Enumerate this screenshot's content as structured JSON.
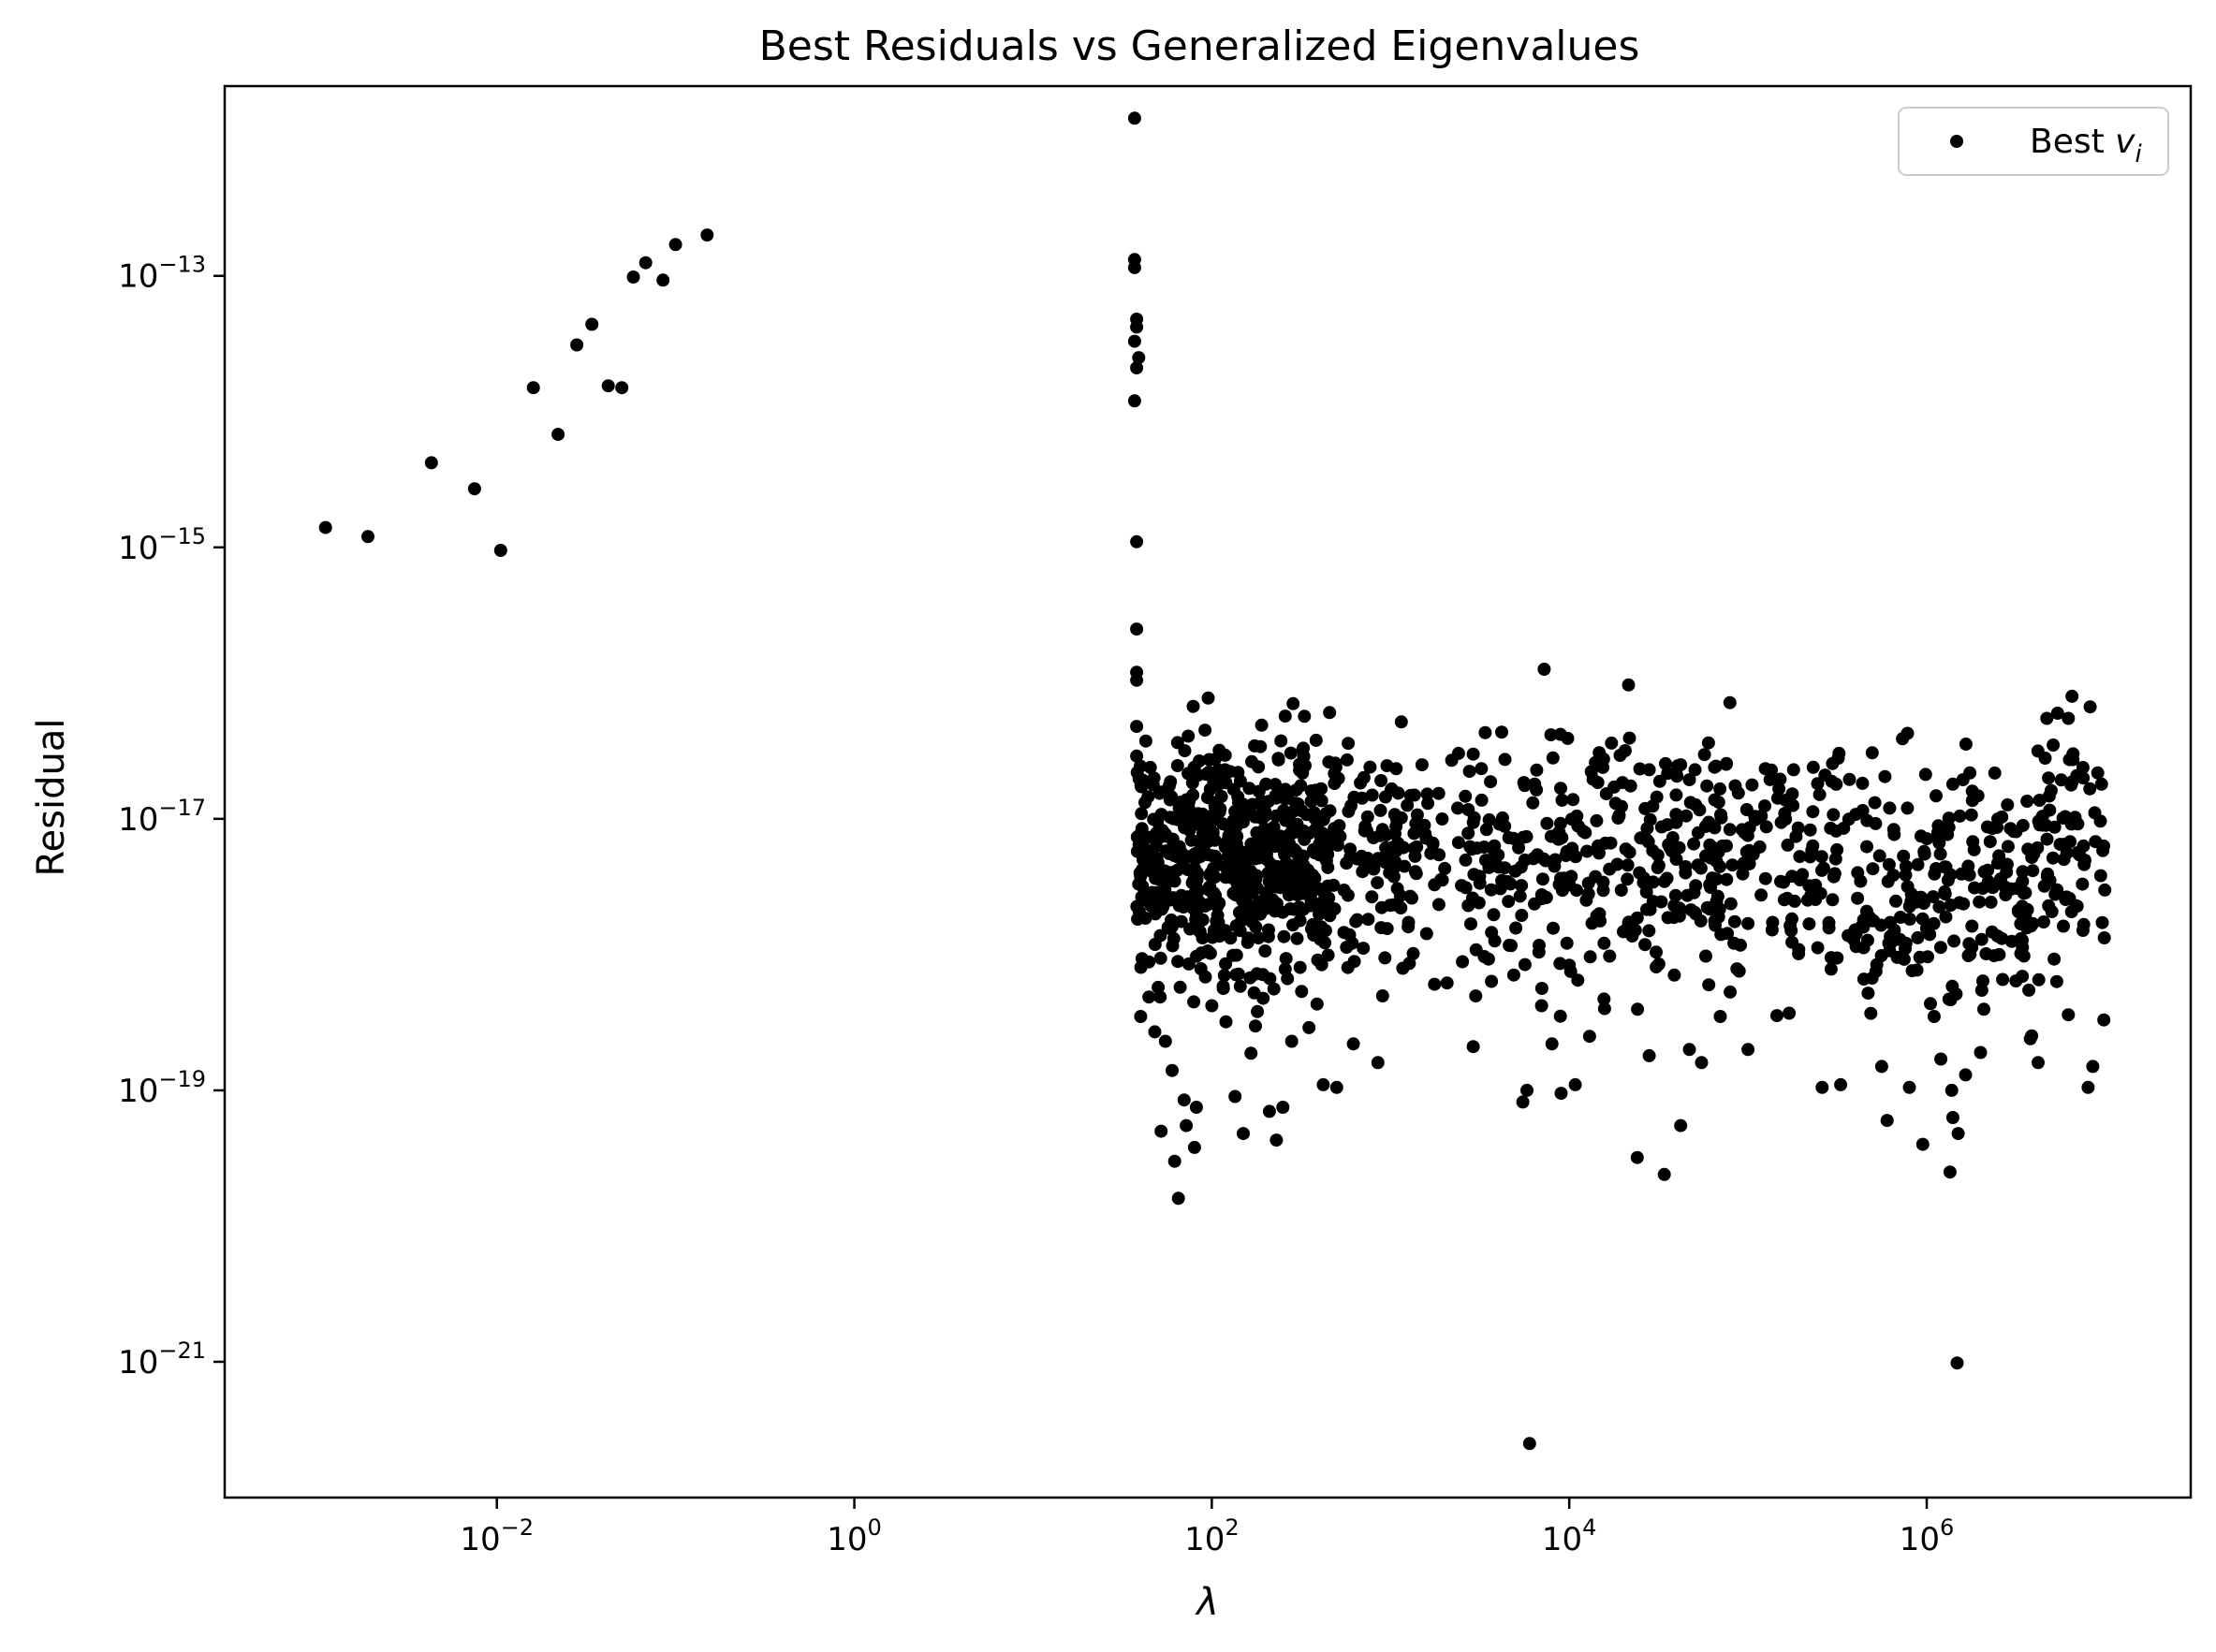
{
  "chart_data": {
    "type": "scatter",
    "title": "Best Residuals vs Generalized Eigenvalues",
    "xlabel": "λ",
    "ylabel": "Residual",
    "xscale": "log",
    "yscale": "log",
    "xlim": [
      0.0003,
      30000000
    ],
    "ylim": [
      1e-22,
      2.5e-12
    ],
    "x_ticks": [
      {
        "base": "10",
        "exp": "−2",
        "value": 0.01
      },
      {
        "base": "10",
        "exp": "0",
        "value": 1
      },
      {
        "base": "10",
        "exp": "2",
        "value": 100
      },
      {
        "base": "10",
        "exp": "4",
        "value": 10000
      },
      {
        "base": "10",
        "exp": "6",
        "value": 1000000
      }
    ],
    "y_ticks": [
      {
        "base": "10",
        "exp": "−13",
        "value": 1e-13
      },
      {
        "base": "10",
        "exp": "−15",
        "value": 1e-15
      },
      {
        "base": "10",
        "exp": "−17",
        "value": 1e-17
      },
      {
        "base": "10",
        "exp": "−19",
        "value": 1e-19
      },
      {
        "base": "10",
        "exp": "−21",
        "value": 1e-21
      }
    ],
    "grid": false,
    "legend": {
      "position": "top-right",
      "label_text": "Best ",
      "label_math": "v",
      "label_sub": "i"
    },
    "marker_color": "#000000",
    "series": [
      {
        "name": "Best v_i",
        "points": [
          [
            0.0011,
            1.4e-15
          ],
          [
            0.0019,
            1.2e-15
          ],
          [
            0.0043,
            4.2e-15
          ],
          [
            0.0075,
            2.7e-15
          ],
          [
            0.0105,
            9.5e-16
          ],
          [
            0.016,
            1.5e-14
          ],
          [
            0.022,
            6.8e-15
          ],
          [
            0.028,
            3.1e-14
          ],
          [
            0.034,
            4.4e-14
          ],
          [
            0.042,
            1.55e-14
          ],
          [
            0.05,
            1.5e-14
          ],
          [
            0.058,
            9.8e-14
          ],
          [
            0.068,
            1.25e-13
          ],
          [
            0.085,
            9.3e-14
          ],
          [
            0.1,
            1.7e-13
          ],
          [
            0.15,
            2e-13
          ],
          [
            37,
            1.45e-12
          ],
          [
            37,
            1.32e-13
          ],
          [
            37,
            1.15e-13
          ],
          [
            38,
            4.8e-14
          ],
          [
            38,
            4.2e-14
          ],
          [
            37,
            3.3e-14
          ],
          [
            39,
            2.5e-14
          ],
          [
            38,
            2.1e-14
          ],
          [
            37,
            1.2e-14
          ],
          [
            38,
            1.1e-15
          ],
          [
            38,
            2.5e-16
          ],
          [
            38,
            1.2e-16
          ],
          [
            38,
            1.05e-16
          ],
          [
            38,
            4.8e-17
          ],
          [
            38,
            2.9e-17
          ],
          [
            1480000,
            9.8e-22
          ],
          [
            6000,
            2.5e-22
          ],
          [
            40,
            3.5e-19
          ],
          [
            48,
            2.7e-19
          ],
          [
            52,
            5e-20
          ],
          [
            55,
            2.3e-19
          ],
          [
            60,
            1.4e-19
          ],
          [
            62,
            3e-20
          ],
          [
            65,
            1.6e-20
          ],
          [
            70,
            8.5e-20
          ],
          [
            72,
            5.5e-20
          ],
          [
            80,
            3.8e-20
          ],
          [
            82,
            7.5e-20
          ],
          [
            100,
            4.2e-19
          ],
          [
            120,
            3.2e-19
          ],
          [
            135,
            9e-20
          ],
          [
            150,
            4.8e-20
          ],
          [
            180,
            3.8e-19
          ],
          [
            210,
            7e-20
          ],
          [
            230,
            4.3e-20
          ],
          [
            250,
            7.5e-20
          ],
          [
            280,
            2.3e-19
          ],
          [
            350,
            2.9e-19
          ],
          [
            420,
            1.1e-19
          ],
          [
            500,
            1.05e-19
          ],
          [
            620,
            2.2e-19
          ],
          [
            850,
            1.6e-19
          ],
          [
            2900,
            2.1e-19
          ],
          [
            5500,
            8.2e-20
          ],
          [
            5800,
            1e-19
          ],
          [
            7000,
            4.2e-19
          ],
          [
            8000,
            2.2e-19
          ],
          [
            9000,
            9.5e-20
          ],
          [
            10800,
            1.1e-19
          ],
          [
            13000,
            2.5e-19
          ],
          [
            24000,
            3.2e-20
          ],
          [
            28000,
            1.8e-19
          ],
          [
            34000,
            2.4e-20
          ],
          [
            42000,
            5.5e-20
          ],
          [
            47000,
            2e-19
          ],
          [
            55000,
            1.6e-19
          ],
          [
            70000,
            3.5e-19
          ],
          [
            100000,
            2e-19
          ],
          [
            170000,
            3.7e-19
          ],
          [
            260000,
            1.05e-19
          ],
          [
            330000,
            1.1e-19
          ],
          [
            470000,
            5.2e-19
          ],
          [
            560000,
            1.5e-19
          ],
          [
            600000,
            6e-20
          ],
          [
            800000,
            1.05e-19
          ],
          [
            950000,
            4e-20
          ],
          [
            1100000,
            3.5e-19
          ],
          [
            1200000,
            1.7e-19
          ],
          [
            1350000,
            2.5e-20
          ],
          [
            1380000,
            1e-19
          ],
          [
            1400000,
            6.3e-20
          ],
          [
            1500000,
            4.8e-20
          ],
          [
            1650000,
            1.3e-19
          ],
          [
            2000000,
            1.9e-19
          ],
          [
            3800000,
            2.4e-19
          ],
          [
            4200000,
            1.6e-19
          ],
          [
            6200000,
            3.6e-19
          ],
          [
            8000000,
            1.05e-19
          ],
          [
            8500000,
            1.5e-19
          ],
          [
            9800000,
            3.3e-19
          ],
          [
            6500000,
            8e-17
          ],
          [
            5400000,
            6e-17
          ],
          [
            6200000,
            5.5e-17
          ],
          [
            4700000,
            5.5e-17
          ],
          [
            5100000,
            3.5e-17
          ],
          [
            4600000,
            2.8e-17
          ],
          [
            4800000,
            2e-17
          ],
          [
            7500000,
            2e-17
          ],
          [
            9500000,
            1.8e-17
          ],
          [
            1400000,
            1.8e-17
          ],
          [
            1800000,
            1.6e-17
          ],
          [
            780000,
            1.2e-17
          ],
          [
            620000,
            1.2e-17
          ],
          [
            180000,
            2.3e-17
          ],
          [
            270000,
            2.1e-17
          ],
          [
            320000,
            2.8e-17
          ],
          [
            65000,
            2.4e-17
          ],
          [
            42000,
            2.5e-17
          ],
          [
            28000,
            2.3e-17
          ],
          [
            14000,
            2.6e-17
          ],
          [
            2900,
            3e-17
          ],
          [
            2200,
            2.7e-17
          ],
          [
            1500,
            2.5e-17
          ],
          [
            580,
            3.6e-17
          ],
          [
            110,
            3.2e-17
          ],
          [
            140,
            2.2e-17
          ]
        ]
      }
    ],
    "dense_cluster": {
      "x_range": [
        38,
        10000000
      ],
      "y_center": 5e-18,
      "y_spread_decades": 0.45,
      "count": 1400
    }
  }
}
